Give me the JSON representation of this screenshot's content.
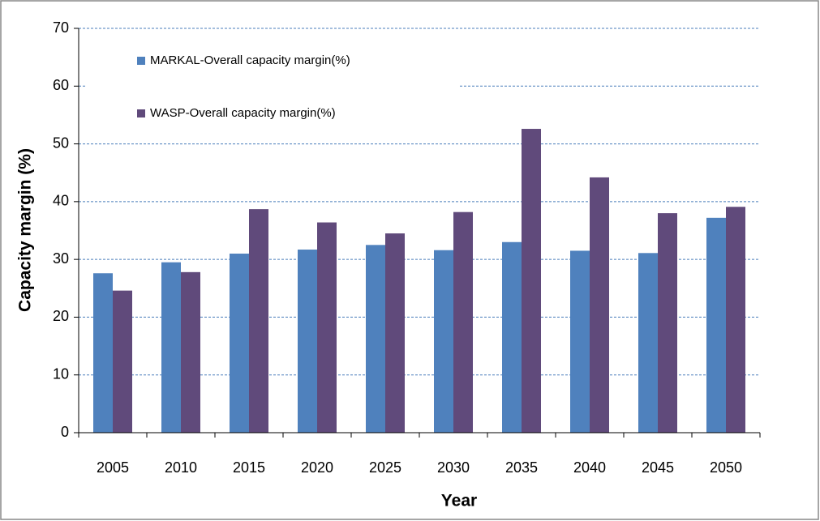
{
  "chart_data": {
    "type": "bar",
    "x_label": "Year",
    "y_label": "Capacity margin (%)",
    "categories": [
      "2005",
      "2010",
      "2015",
      "2020",
      "2025",
      "2030",
      "2035",
      "2040",
      "2045",
      "2050"
    ],
    "series": [
      {
        "name": "MARKAL-Overall  capacity margin(%)",
        "color": "#4f81bd",
        "values": [
          27.6,
          29.5,
          31.0,
          31.7,
          32.5,
          31.6,
          33.0,
          31.5,
          31.1,
          37.2
        ]
      },
      {
        "name": "WASP-Overall  capacity margin(%)",
        "color": "#604a7b",
        "values": [
          24.6,
          27.8,
          38.7,
          36.4,
          34.5,
          38.2,
          52.6,
          44.2,
          38.0,
          39.1
        ]
      }
    ],
    "ylim": [
      0,
      70
    ],
    "yticks": [
      0,
      10,
      20,
      30,
      40,
      50,
      60,
      70
    ],
    "grid": true,
    "legend_position": "top-left"
  }
}
